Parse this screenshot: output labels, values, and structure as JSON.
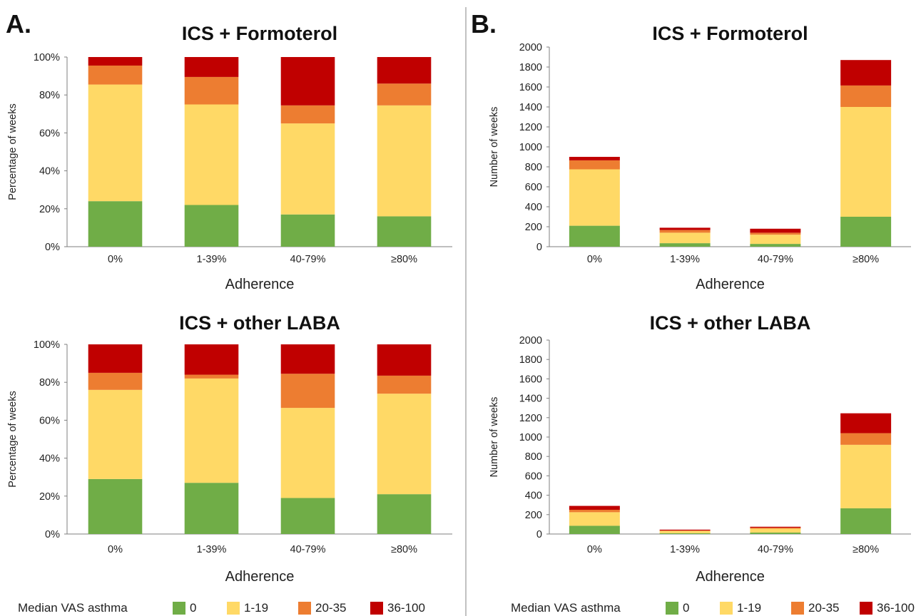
{
  "panels": [
    {
      "letter": "A."
    },
    {
      "letter": "B."
    }
  ],
  "legend": {
    "title": "Median VAS asthma",
    "items": [
      {
        "label": "0",
        "color": "#70ad47"
      },
      {
        "label": "1-19",
        "color": "#ffd966"
      },
      {
        "label": "20-35",
        "color": "#ed7d31"
      },
      {
        "label": "36-100",
        "color": "#c00000"
      }
    ]
  },
  "chart_data": [
    {
      "type": "bar",
      "stacked": true,
      "panel": "A",
      "title": "ICS + Formoterol",
      "xlabel": "Adherence",
      "ylabel": "Percentage of weeks",
      "categories": [
        "0%",
        "1-39%",
        "40-79%",
        "≥80%"
      ],
      "ylim": [
        0,
        100
      ],
      "yticks": [
        0,
        20,
        40,
        60,
        80,
        100
      ],
      "ytick_suffix": "%",
      "series": [
        {
          "name": "0",
          "values": [
            24,
            22,
            17,
            16
          ]
        },
        {
          "name": "1-19",
          "values": [
            61.5,
            53,
            48,
            58.5
          ]
        },
        {
          "name": "20-35",
          "values": [
            10,
            14.5,
            9.5,
            11.5
          ]
        },
        {
          "name": "36-100",
          "values": [
            4.5,
            10.5,
            25.5,
            14
          ]
        }
      ]
    },
    {
      "type": "bar",
      "stacked": true,
      "panel": "B",
      "title": "ICS + Formoterol",
      "xlabel": "Adherence",
      "ylabel": "Number of weeks",
      "categories": [
        "0%",
        "1-39%",
        "40-79%",
        "≥80%"
      ],
      "ylim": [
        0,
        2000
      ],
      "yticks": [
        0,
        200,
        400,
        600,
        800,
        1000,
        1200,
        1400,
        1600,
        1800,
        2000
      ],
      "ytick_suffix": "",
      "series": [
        {
          "name": "0",
          "values": [
            210,
            35,
            28,
            300
          ]
        },
        {
          "name": "1-19",
          "values": [
            565,
            105,
            92,
            1100
          ]
        },
        {
          "name": "20-35",
          "values": [
            90,
            27,
            20,
            215
          ]
        },
        {
          "name": "36-100",
          "values": [
            35,
            23,
            40,
            255
          ]
        }
      ]
    },
    {
      "type": "bar",
      "stacked": true,
      "panel": "A",
      "title": "ICS + other LABA",
      "xlabel": "Adherence",
      "ylabel": "Percentage of weeks",
      "categories": [
        "0%",
        "1-39%",
        "40-79%",
        "≥80%"
      ],
      "ylim": [
        0,
        100
      ],
      "yticks": [
        0,
        20,
        40,
        60,
        80,
        100
      ],
      "ytick_suffix": "%",
      "series": [
        {
          "name": "0",
          "values": [
            29,
            27,
            19,
            21
          ]
        },
        {
          "name": "1-19",
          "values": [
            47,
            55,
            47.5,
            53
          ]
        },
        {
          "name": "20-35",
          "values": [
            9,
            2,
            18,
            9.5
          ]
        },
        {
          "name": "36-100",
          "values": [
            15,
            16,
            15.5,
            16.5
          ]
        }
      ]
    },
    {
      "type": "bar",
      "stacked": true,
      "panel": "B",
      "title": "ICS + other LABA",
      "xlabel": "Adherence",
      "ylabel": "Number of weeks",
      "categories": [
        "0%",
        "1-39%",
        "40-79%",
        "≥80%"
      ],
      "ylim": [
        0,
        2000
      ],
      "yticks": [
        0,
        200,
        400,
        600,
        800,
        1000,
        1200,
        1400,
        1600,
        1800,
        2000
      ],
      "ytick_suffix": "",
      "series": [
        {
          "name": "0",
          "values": [
            85,
            8,
            15,
            265
          ]
        },
        {
          "name": "1-19",
          "values": [
            140,
            25,
            40,
            655
          ]
        },
        {
          "name": "20-35",
          "values": [
            25,
            2,
            10,
            120
          ]
        },
        {
          "name": "36-100",
          "values": [
            40,
            10,
            10,
            205
          ]
        }
      ]
    }
  ]
}
